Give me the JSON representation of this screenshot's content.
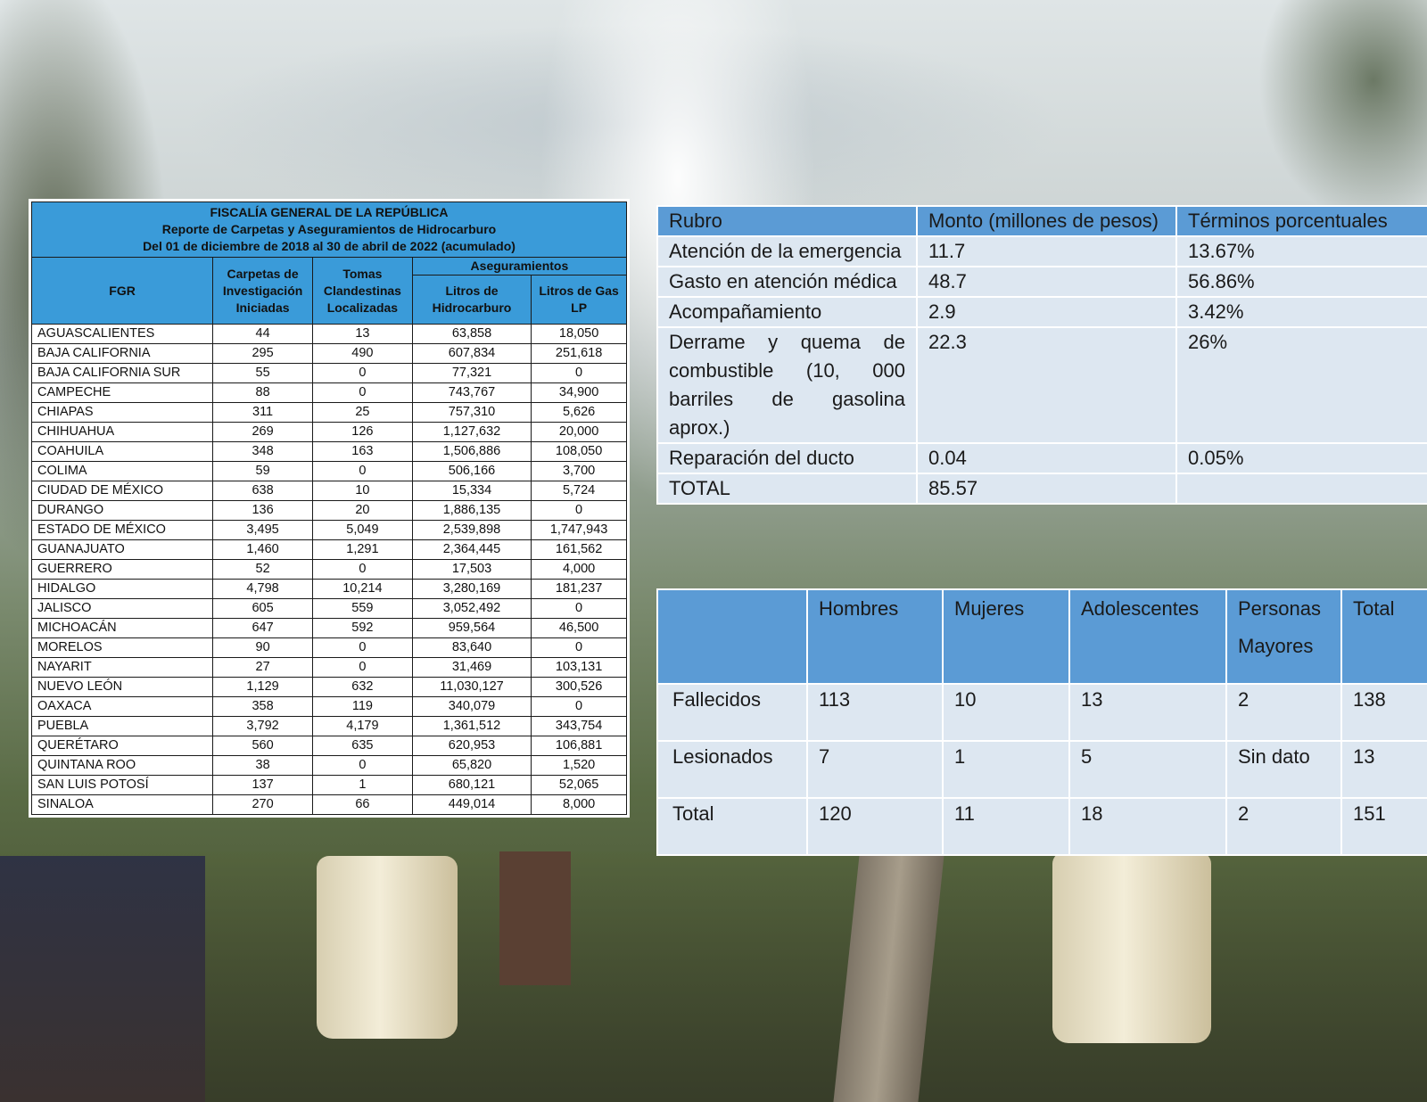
{
  "fgr_table": {
    "title_lines": [
      "FISCALÍA GENERAL DE LA REPÚBLICA",
      "Reporte de Carpetas y Aseguramientos de Hidrocarburo",
      "Del 01 de diciembre de 2018 al 30 de abril de 2022 (acumulado)"
    ],
    "headers": {
      "fgr": "FGR",
      "carpetas": "Carpetas de Investigación Iniciadas",
      "tomas": "Tomas Clandestinas Localizadas",
      "aseguramientos": "Aseguramientos",
      "litros_hidro": "Litros de Hidrocarburo",
      "litros_gas": "Litros de Gas LP"
    },
    "rows": [
      {
        "state": "AGUASCALIENTES",
        "carpetas": "44",
        "tomas": "13",
        "hidro": "63,858",
        "gas": "18,050"
      },
      {
        "state": "BAJA CALIFORNIA",
        "carpetas": "295",
        "tomas": "490",
        "hidro": "607,834",
        "gas": "251,618"
      },
      {
        "state": "BAJA CALIFORNIA SUR",
        "carpetas": "55",
        "tomas": "0",
        "hidro": "77,321",
        "gas": "0"
      },
      {
        "state": "CAMPECHE",
        "carpetas": "88",
        "tomas": "0",
        "hidro": "743,767",
        "gas": "34,900"
      },
      {
        "state": "CHIAPAS",
        "carpetas": "311",
        "tomas": "25",
        "hidro": "757,310",
        "gas": "5,626"
      },
      {
        "state": "CHIHUAHUA",
        "carpetas": "269",
        "tomas": "126",
        "hidro": "1,127,632",
        "gas": "20,000"
      },
      {
        "state": "COAHUILA",
        "carpetas": "348",
        "tomas": "163",
        "hidro": "1,506,886",
        "gas": "108,050"
      },
      {
        "state": "COLIMA",
        "carpetas": "59",
        "tomas": "0",
        "hidro": "506,166",
        "gas": "3,700"
      },
      {
        "state": "CIUDAD DE MÉXICO",
        "carpetas": "638",
        "tomas": "10",
        "hidro": "15,334",
        "gas": "5,724"
      },
      {
        "state": "DURANGO",
        "carpetas": "136",
        "tomas": "20",
        "hidro": "1,886,135",
        "gas": "0"
      },
      {
        "state": "ESTADO DE MÉXICO",
        "carpetas": "3,495",
        "tomas": "5,049",
        "hidro": "2,539,898",
        "gas": "1,747,943"
      },
      {
        "state": "GUANAJUATO",
        "carpetas": "1,460",
        "tomas": "1,291",
        "hidro": "2,364,445",
        "gas": "161,562"
      },
      {
        "state": "GUERRERO",
        "carpetas": "52",
        "tomas": "0",
        "hidro": "17,503",
        "gas": "4,000"
      },
      {
        "state": "HIDALGO",
        "carpetas": "4,798",
        "tomas": "10,214",
        "hidro": "3,280,169",
        "gas": "181,237"
      },
      {
        "state": "JALISCO",
        "carpetas": "605",
        "tomas": "559",
        "hidro": "3,052,492",
        "gas": "0"
      },
      {
        "state": "MICHOACÁN",
        "carpetas": "647",
        "tomas": "592",
        "hidro": "959,564",
        "gas": "46,500"
      },
      {
        "state": "MORELOS",
        "carpetas": "90",
        "tomas": "0",
        "hidro": "83,640",
        "gas": "0"
      },
      {
        "state": "NAYARIT",
        "carpetas": "27",
        "tomas": "0",
        "hidro": "31,469",
        "gas": "103,131"
      },
      {
        "state": "NUEVO LEÓN",
        "carpetas": "1,129",
        "tomas": "632",
        "hidro": "11,030,127",
        "gas": "300,526"
      },
      {
        "state": "OAXACA",
        "carpetas": "358",
        "tomas": "119",
        "hidro": "340,079",
        "gas": "0"
      },
      {
        "state": "PUEBLA",
        "carpetas": "3,792",
        "tomas": "4,179",
        "hidro": "1,361,512",
        "gas": "343,754"
      },
      {
        "state": "QUERÉTARO",
        "carpetas": "560",
        "tomas": "635",
        "hidro": "620,953",
        "gas": "106,881"
      },
      {
        "state": "QUINTANA ROO",
        "carpetas": "38",
        "tomas": "0",
        "hidro": "65,820",
        "gas": "1,520"
      },
      {
        "state": "SAN LUIS POTOSÍ",
        "carpetas": "137",
        "tomas": "1",
        "hidro": "680,121",
        "gas": "52,065"
      },
      {
        "state": "SINALOA",
        "carpetas": "270",
        "tomas": "66",
        "hidro": "449,014",
        "gas": "8,000"
      }
    ]
  },
  "costs_table": {
    "headers": [
      "Rubro",
      "Monto (millones de pesos)",
      "Términos porcentuales"
    ],
    "rows": [
      {
        "rubro": "Atención de la emergencia",
        "monto": "11.7",
        "pct": "13.67%"
      },
      {
        "rubro": "Gasto en atención médica",
        "monto": "48.7",
        "pct": "56.86%"
      },
      {
        "rubro": "Acompañamiento",
        "monto": "2.9",
        "pct": "3.42%"
      },
      {
        "rubro": "Derrame y quema de combustible (10, 000 barriles de gasolina aprox.)",
        "monto": "22.3",
        "pct": "26%"
      },
      {
        "rubro": "Reparación del ducto",
        "monto": "0.04",
        "pct": "0.05%"
      },
      {
        "rubro": "TOTAL",
        "monto": "85.57",
        "pct": ""
      }
    ]
  },
  "victims_table": {
    "headers": [
      "",
      "Hombres",
      "Mujeres",
      "Adolescentes",
      "Personas Mayores",
      "Total"
    ],
    "rows": [
      {
        "label": "Fallecidos",
        "hombres": "113",
        "mujeres": "10",
        "adolescentes": "13",
        "mayores": "2",
        "total": "138"
      },
      {
        "label": "Lesionados",
        "hombres": "7",
        "mujeres": "1",
        "adolescentes": "5",
        "mayores": "Sin dato",
        "total": "13"
      },
      {
        "label": "Total",
        "hombres": "120",
        "mujeres": "11",
        "adolescentes": "18",
        "mayores": "2",
        "total": "151"
      }
    ]
  },
  "colors": {
    "fgr_header_blue": "#3a9bd9",
    "costs_header_blue": "#5b9bd5",
    "costs_body_light": "#dde7f1"
  }
}
